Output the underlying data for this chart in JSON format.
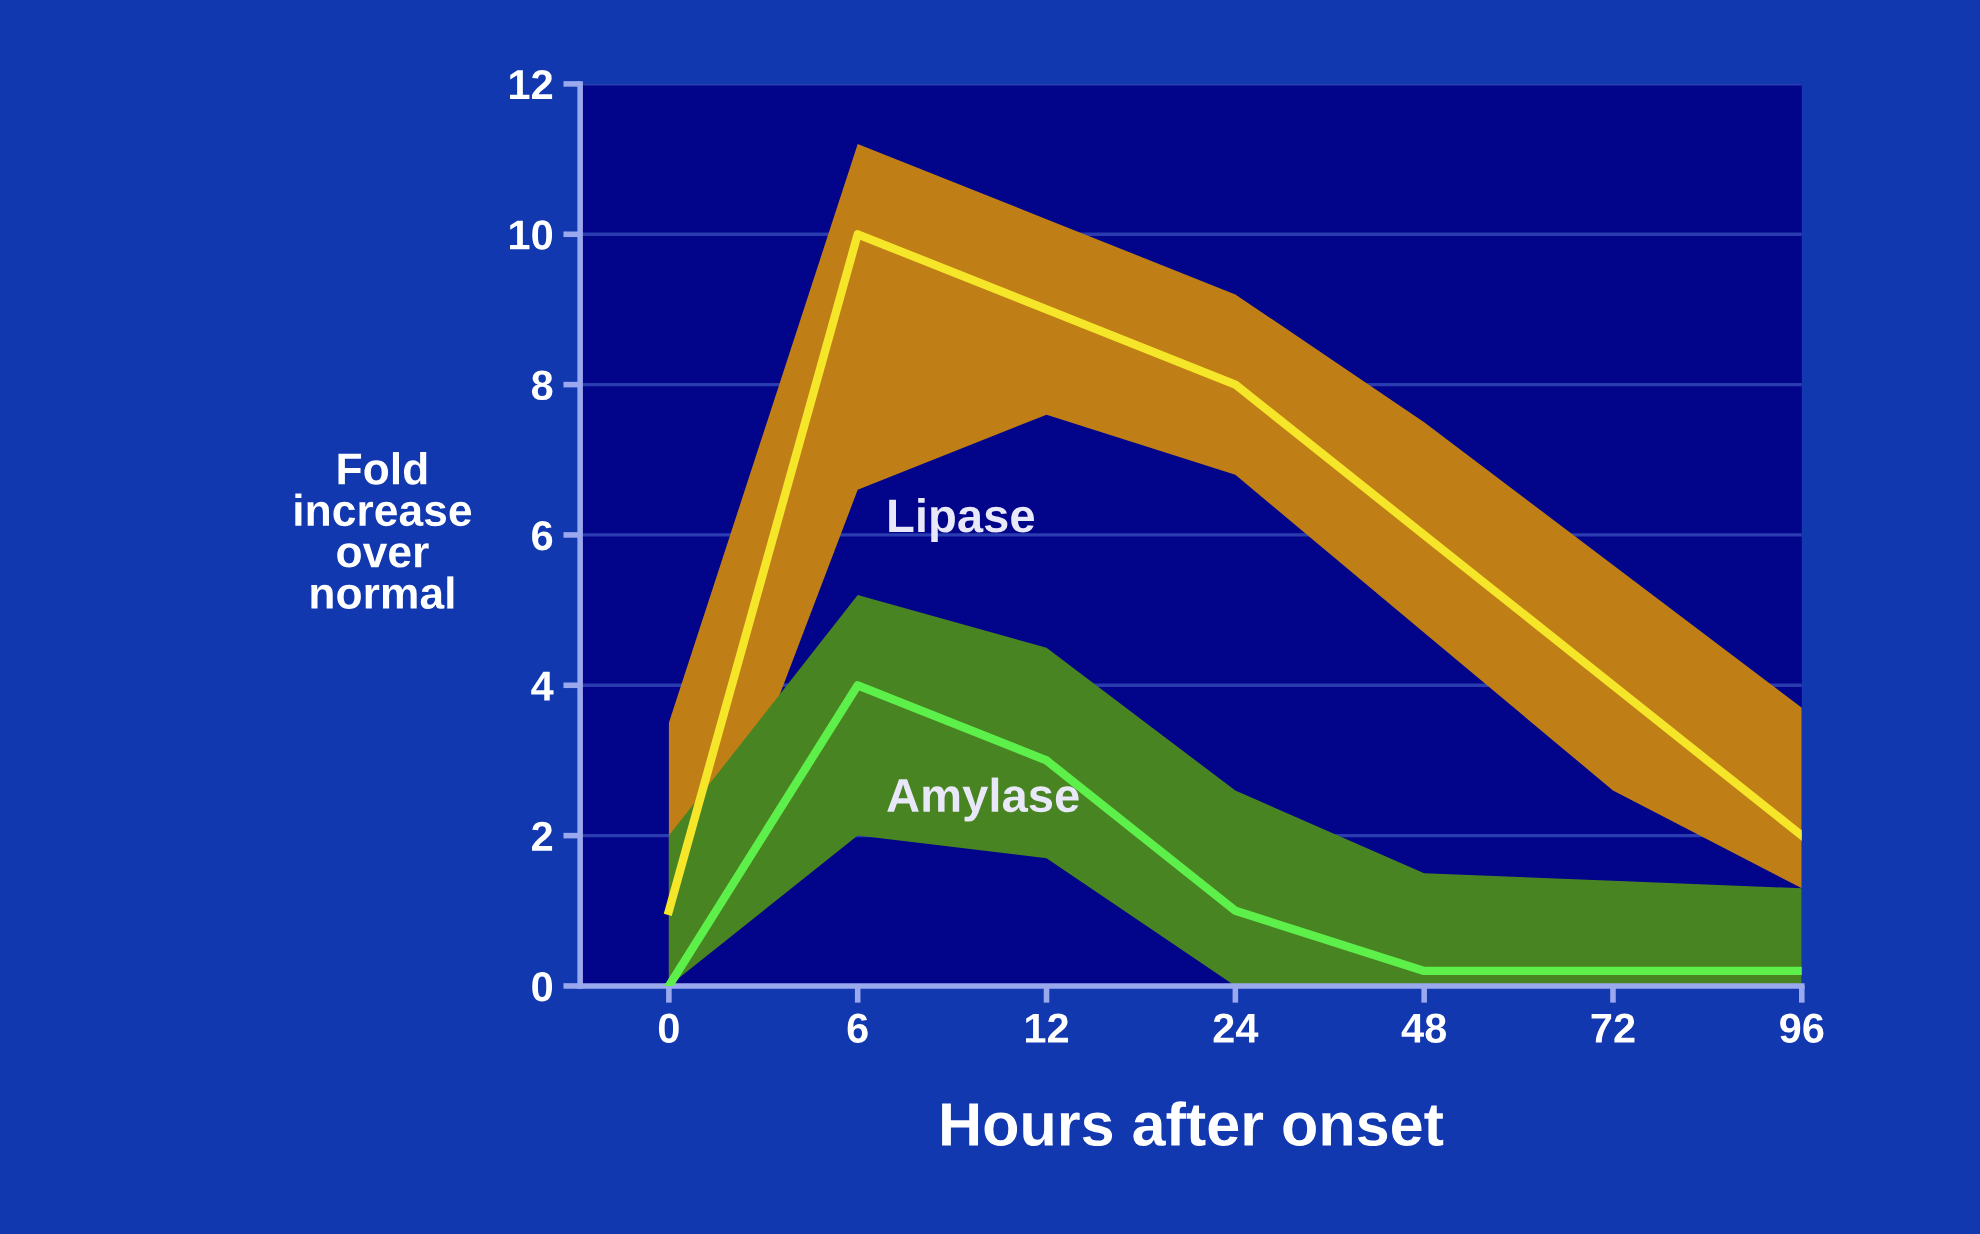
{
  "chart_data": {
    "type": "line",
    "xlabel": "Hours after onset",
    "ylabel": "Fold\nincrease\nover\nnormal",
    "categories": [
      "0",
      "6",
      "12",
      "24",
      "48",
      "72",
      "96"
    ],
    "series": [
      {
        "name": "Lipase",
        "color": "#f5e629",
        "values": [
          1,
          10,
          9,
          8,
          6,
          4,
          2
        ],
        "lower": [
          0,
          6.6,
          7.6,
          6.8,
          4.7,
          2.6,
          1.3
        ],
        "upper": [
          3.5,
          11.2,
          10.2,
          9.2,
          7.5,
          5.6,
          3.7
        ]
      },
      {
        "name": "Amylase",
        "color": "#5ef04a",
        "values": [
          0,
          4,
          3,
          1,
          0.2,
          0.2,
          0.2
        ],
        "lower": [
          0,
          2,
          1.7,
          0,
          0,
          0,
          0
        ],
        "upper": [
          2,
          5.2,
          4.5,
          2.6,
          1.5,
          1.4,
          1.3
        ]
      }
    ],
    "ylim": [
      0,
      12
    ],
    "yticks": [
      0,
      2,
      4,
      6,
      8,
      10,
      12
    ],
    "grid": "y",
    "marker": "none",
    "line_style": "solid"
  }
}
